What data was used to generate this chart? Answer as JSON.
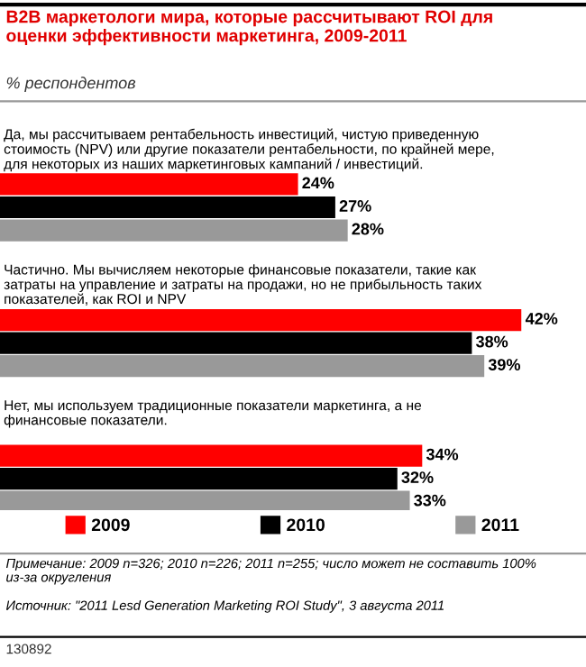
{
  "chart_data": {
    "type": "bar",
    "orientation": "horizontal",
    "title": "B2B маркетологи мира, которые рассчитывают ROI для\nоценки эффективности маркетинга, 2009-2011",
    "subtitle": "% респондентов",
    "categories": [
      "Да, мы рассчитываем рентабельность инвестиций, чистую приведенную\nстоимость (NPV) или другие показатели рентабельности, по крайней мере,\nдля некоторых из наших маркетинговых кампаний / инвестиций.",
      "Частично. Мы вычисляем некоторые финансовые показатели, такие как\nзатраты на управление и затраты на продажи, но не прибыльность таких\nпоказателей, как ROI и NPV",
      "Нет, мы используем традиционные показатели маркетинга, а не\nфинансовые показатели."
    ],
    "series": [
      {
        "name": "2009",
        "color": "#ff0000",
        "values": [
          24,
          42,
          34
        ],
        "value_labels": [
          "24%",
          "42%",
          "34%"
        ]
      },
      {
        "name": "2010",
        "color": "#000000",
        "values": [
          27,
          38,
          32
        ],
        "value_labels": [
          "27%",
          "38%",
          "32%"
        ]
      },
      {
        "name": "2011",
        "color": "#999999",
        "values": [
          28,
          39,
          33
        ],
        "value_labels": [
          "28%",
          "39%",
          "33%"
        ]
      }
    ],
    "legend": "bottom",
    "annotations": [
      "Примечание: 2009 n=326; 2010 n=226; 2011 n=255; число может не составить 100%\nиз-за округления",
      "Источник: \"2011 Lesd Generation Marketing ROI Study\", 3 августа 2011",
      "130892"
    ]
  }
}
